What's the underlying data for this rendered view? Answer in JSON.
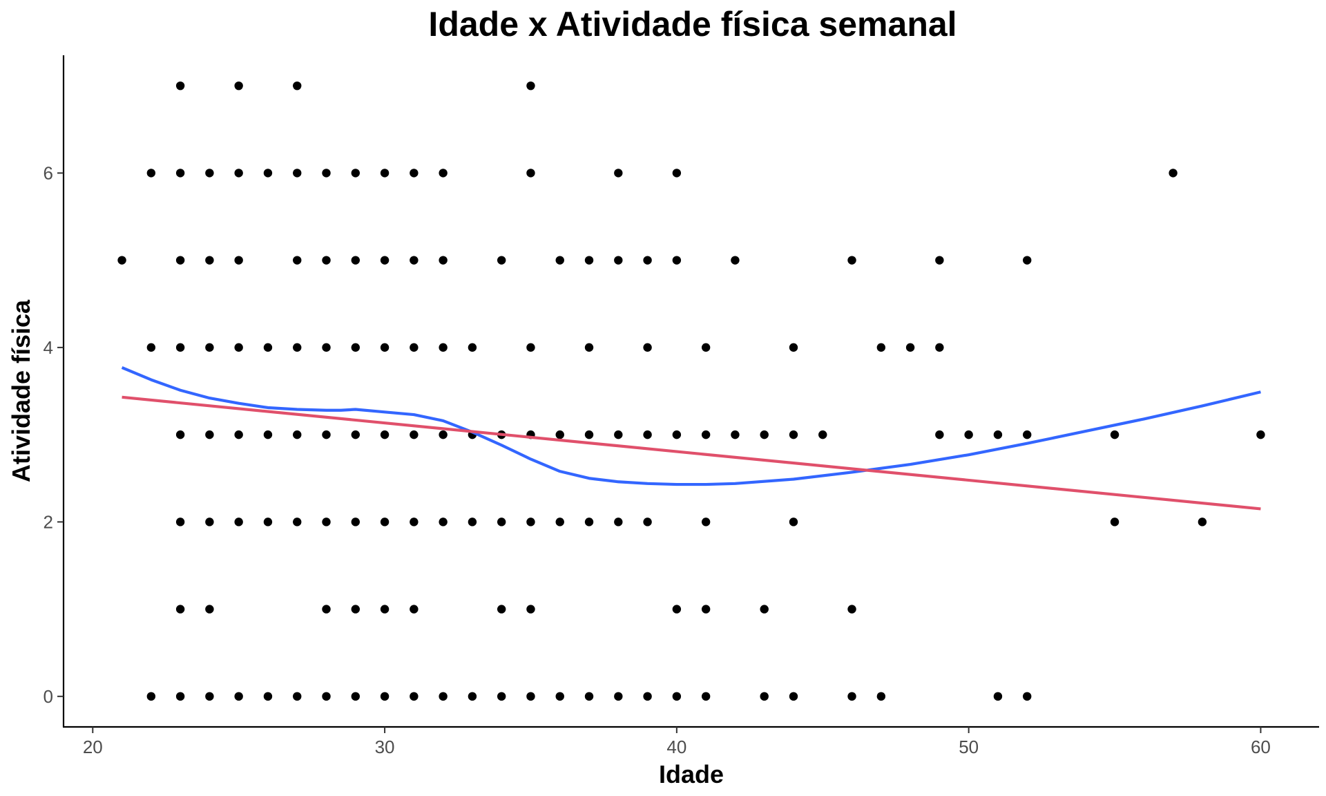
{
  "chart_data": {
    "type": "scatter",
    "title": "Idade x Atividade física semanal",
    "xlabel": "Idade",
    "ylabel": "Atividade física",
    "xlim": [
      19,
      62
    ],
    "ylim": [
      -0.35,
      7.35
    ],
    "x_ticks": [
      20,
      30,
      40,
      50,
      60
    ],
    "y_ticks": [
      0,
      2,
      4,
      6
    ],
    "x_tick_labels": [
      "20",
      "30",
      "40",
      "50",
      "60"
    ],
    "y_tick_labels": [
      "0",
      "2",
      "4",
      "6"
    ],
    "grid": false,
    "legend": "none",
    "point_color": "#000000",
    "points": [
      [
        23,
        7
      ],
      [
        25,
        7
      ],
      [
        27,
        7
      ],
      [
        35,
        7
      ],
      [
        22,
        6
      ],
      [
        23,
        6
      ],
      [
        24,
        6
      ],
      [
        25,
        6
      ],
      [
        26,
        6
      ],
      [
        27,
        6
      ],
      [
        28,
        6
      ],
      [
        29,
        6
      ],
      [
        30,
        6
      ],
      [
        31,
        6
      ],
      [
        32,
        6
      ],
      [
        35,
        6
      ],
      [
        38,
        6
      ],
      [
        40,
        6
      ],
      [
        57,
        6
      ],
      [
        21,
        5
      ],
      [
        23,
        5
      ],
      [
        24,
        5
      ],
      [
        25,
        5
      ],
      [
        27,
        5
      ],
      [
        28,
        5
      ],
      [
        29,
        5
      ],
      [
        30,
        5
      ],
      [
        31,
        5
      ],
      [
        32,
        5
      ],
      [
        34,
        5
      ],
      [
        36,
        5
      ],
      [
        37,
        5
      ],
      [
        38,
        5
      ],
      [
        39,
        5
      ],
      [
        40,
        5
      ],
      [
        42,
        5
      ],
      [
        46,
        5
      ],
      [
        49,
        5
      ],
      [
        52,
        5
      ],
      [
        22,
        4
      ],
      [
        23,
        4
      ],
      [
        24,
        4
      ],
      [
        25,
        4
      ],
      [
        26,
        4
      ],
      [
        27,
        4
      ],
      [
        28,
        4
      ],
      [
        29,
        4
      ],
      [
        30,
        4
      ],
      [
        31,
        4
      ],
      [
        32,
        4
      ],
      [
        33,
        4
      ],
      [
        35,
        4
      ],
      [
        37,
        4
      ],
      [
        39,
        4
      ],
      [
        41,
        4
      ],
      [
        44,
        4
      ],
      [
        47,
        4
      ],
      [
        48,
        4
      ],
      [
        49,
        4
      ],
      [
        23,
        3
      ],
      [
        24,
        3
      ],
      [
        25,
        3
      ],
      [
        26,
        3
      ],
      [
        27,
        3
      ],
      [
        28,
        3
      ],
      [
        29,
        3
      ],
      [
        30,
        3
      ],
      [
        31,
        3
      ],
      [
        32,
        3
      ],
      [
        33,
        3
      ],
      [
        34,
        3
      ],
      [
        35,
        3
      ],
      [
        36,
        3
      ],
      [
        37,
        3
      ],
      [
        38,
        3
      ],
      [
        39,
        3
      ],
      [
        40,
        3
      ],
      [
        41,
        3
      ],
      [
        42,
        3
      ],
      [
        43,
        3
      ],
      [
        44,
        3
      ],
      [
        45,
        3
      ],
      [
        49,
        3
      ],
      [
        50,
        3
      ],
      [
        51,
        3
      ],
      [
        52,
        3
      ],
      [
        55,
        3
      ],
      [
        60,
        3
      ],
      [
        23,
        2
      ],
      [
        24,
        2
      ],
      [
        25,
        2
      ],
      [
        26,
        2
      ],
      [
        27,
        2
      ],
      [
        28,
        2
      ],
      [
        29,
        2
      ],
      [
        30,
        2
      ],
      [
        31,
        2
      ],
      [
        32,
        2
      ],
      [
        33,
        2
      ],
      [
        34,
        2
      ],
      [
        35,
        2
      ],
      [
        36,
        2
      ],
      [
        37,
        2
      ],
      [
        38,
        2
      ],
      [
        39,
        2
      ],
      [
        41,
        2
      ],
      [
        44,
        2
      ],
      [
        55,
        2
      ],
      [
        58,
        2
      ],
      [
        23,
        1
      ],
      [
        24,
        1
      ],
      [
        28,
        1
      ],
      [
        29,
        1
      ],
      [
        30,
        1
      ],
      [
        31,
        1
      ],
      [
        34,
        1
      ],
      [
        35,
        1
      ],
      [
        40,
        1
      ],
      [
        41,
        1
      ],
      [
        43,
        1
      ],
      [
        46,
        1
      ],
      [
        22,
        0
      ],
      [
        23,
        0
      ],
      [
        24,
        0
      ],
      [
        25,
        0
      ],
      [
        26,
        0
      ],
      [
        27,
        0
      ],
      [
        28,
        0
      ],
      [
        29,
        0
      ],
      [
        30,
        0
      ],
      [
        31,
        0
      ],
      [
        32,
        0
      ],
      [
        33,
        0
      ],
      [
        34,
        0
      ],
      [
        35,
        0
      ],
      [
        36,
        0
      ],
      [
        37,
        0
      ],
      [
        38,
        0
      ],
      [
        39,
        0
      ],
      [
        40,
        0
      ],
      [
        41,
        0
      ],
      [
        43,
        0
      ],
      [
        44,
        0
      ],
      [
        46,
        0
      ],
      [
        47,
        0
      ],
      [
        51,
        0
      ],
      [
        52,
        0
      ]
    ],
    "series": [
      {
        "type": "line",
        "color": "#3366ff",
        "x": [
          21,
          22,
          23,
          24,
          25,
          26,
          27,
          28,
          28.5,
          29,
          30,
          31,
          32,
          33,
          34,
          35,
          36,
          37,
          38,
          39,
          40,
          41,
          42,
          44,
          46,
          48,
          50,
          52,
          54,
          56,
          58,
          60
        ],
        "y": [
          3.77,
          3.63,
          3.51,
          3.42,
          3.36,
          3.31,
          3.29,
          3.28,
          3.28,
          3.29,
          3.26,
          3.23,
          3.16,
          3.03,
          2.88,
          2.72,
          2.58,
          2.5,
          2.46,
          2.44,
          2.43,
          2.43,
          2.44,
          2.49,
          2.57,
          2.66,
          2.77,
          2.9,
          3.04,
          3.18,
          3.33,
          3.49
        ]
      },
      {
        "type": "line",
        "color": "#e0506b",
        "x": [
          21,
          60
        ],
        "y": [
          3.43,
          2.15
        ]
      }
    ]
  }
}
